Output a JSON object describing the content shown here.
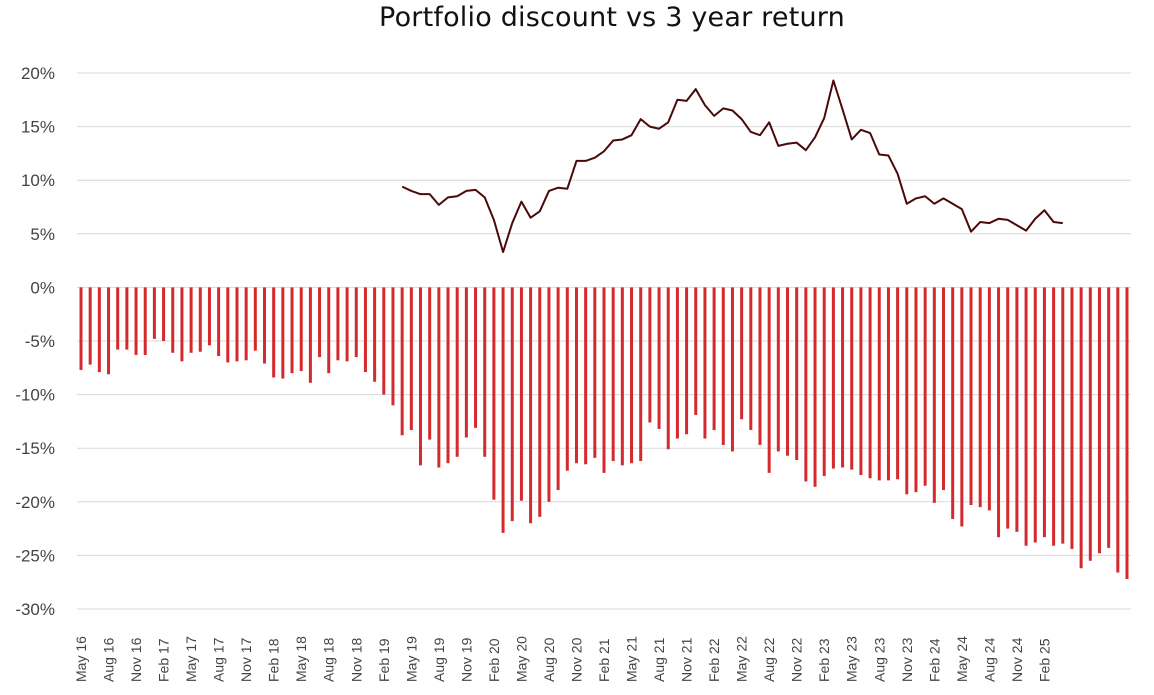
{
  "chart_data": {
    "type": "bar",
    "title": "Portfolio discount vs 3 year return",
    "xlabel": "",
    "ylabel": "",
    "ylim": [
      -30,
      20
    ],
    "yticks": [
      "20%",
      "15%",
      "10%",
      "5%",
      "0%",
      "-5%",
      "-10%",
      "-15%",
      "-20%",
      "-25%",
      "-30%"
    ],
    "ytick_values": [
      20,
      15,
      10,
      5,
      0,
      -5,
      -10,
      -15,
      -20,
      -25,
      -30
    ],
    "xtick_labels": [
      "May 16",
      "Aug 16",
      "Nov 16",
      "Feb 17",
      "May 17",
      "Aug 17",
      "Nov 17",
      "Feb 18",
      "May 18",
      "Aug 18",
      "Nov 18",
      "Feb 19",
      "May 19",
      "Aug 19",
      "Nov 19",
      "Feb 20",
      "May 20",
      "Aug 20",
      "Nov 20",
      "Feb 21",
      "May 21",
      "Aug 21",
      "Nov 21",
      "Feb 22",
      "May 22",
      "Aug 22",
      "Nov 22",
      "Feb 23",
      "May 23",
      "Aug 23",
      "Nov 23",
      "Feb 24",
      "May 24",
      "Aug 24",
      "Nov 24",
      "Feb 25"
    ],
    "grid": true,
    "legend": "none",
    "colors": {
      "bars": "#d42a2e",
      "line": "#4a0a0a",
      "grid": "#d9d9d9"
    },
    "series": [
      {
        "type": "bar",
        "values": [
          -7.7,
          -7.2,
          -7.9,
          -8.1,
          -5.8,
          -5.8,
          -6.3,
          -6.3,
          -4.8,
          -5.0,
          -6.1,
          -6.9,
          -6.1,
          -6.0,
          -5.4,
          -6.4,
          -7.0,
          -6.9,
          -6.8,
          -5.9,
          -7.1,
          -8.4,
          -8.5,
          -8.0,
          -7.8,
          -8.9,
          -6.5,
          -8.0,
          -6.8,
          -6.9,
          -6.5,
          -7.9,
          -8.8,
          -10.0,
          -11.0,
          -13.8,
          -13.3,
          -16.6,
          -14.2,
          -16.8,
          -16.4,
          -15.8,
          -14.0,
          -13.1,
          -15.8,
          -19.8,
          -22.9,
          -21.8,
          -19.9,
          -22.0,
          -21.4,
          -20.0,
          -18.9,
          -17.1,
          -16.4,
          -16.5,
          -15.9,
          -17.3,
          -16.2,
          -16.6,
          -16.4,
          -16.2,
          -12.6,
          -13.2,
          -15.1,
          -14.1,
          -13.7,
          -11.9,
          -14.1,
          -13.3,
          -14.7,
          -15.3,
          -12.3,
          -13.3,
          -14.7,
          -17.3,
          -15.3,
          -15.7,
          -16.1,
          -18.1,
          -18.6,
          -17.6,
          -16.9,
          -16.8,
          -17.0,
          -17.5,
          -17.8,
          -18.0,
          -18.0,
          -17.9,
          -19.3,
          -19.1,
          -18.5,
          -20.1,
          -18.9,
          -21.6,
          -22.3,
          -20.3,
          -20.5,
          -20.8,
          -23.3,
          -22.5,
          -22.8,
          -24.1,
          -23.8,
          -23.3,
          -24.1,
          -23.9,
          -24.4,
          -26.2,
          -25.5,
          -24.8,
          -24.3,
          -26.6,
          -27.2
        ]
      },
      {
        "type": "line",
        "values": [
          null,
          null,
          null,
          null,
          null,
          null,
          null,
          null,
          null,
          null,
          null,
          null,
          null,
          null,
          null,
          null,
          null,
          null,
          null,
          null,
          null,
          null,
          null,
          null,
          null,
          null,
          null,
          null,
          null,
          null,
          null,
          null,
          null,
          null,
          null,
          9.4,
          9.0,
          8.7,
          8.7,
          7.7,
          8.4,
          8.5,
          9.0,
          9.1,
          8.4,
          6.3,
          3.3,
          6.0,
          8.0,
          6.5,
          7.1,
          9.0,
          9.3,
          9.2,
          11.8,
          11.8,
          12.1,
          12.7,
          13.7,
          13.8,
          14.2,
          15.7,
          15.0,
          14.8,
          15.4,
          17.5,
          17.4,
          18.5,
          17.0,
          16.0,
          16.7,
          16.5,
          15.7,
          14.5,
          14.2,
          15.4,
          13.2,
          13.4,
          13.5,
          12.8,
          14.0,
          15.8,
          19.3,
          16.6,
          13.8,
          14.7,
          14.4,
          12.4,
          12.3,
          10.6,
          7.8,
          8.3,
          8.5,
          7.8,
          8.3,
          7.8,
          7.3,
          5.2,
          6.1,
          6.0,
          6.4,
          6.3,
          5.8,
          5.3,
          6.4,
          7.2,
          6.1,
          6.0
        ]
      }
    ]
  }
}
